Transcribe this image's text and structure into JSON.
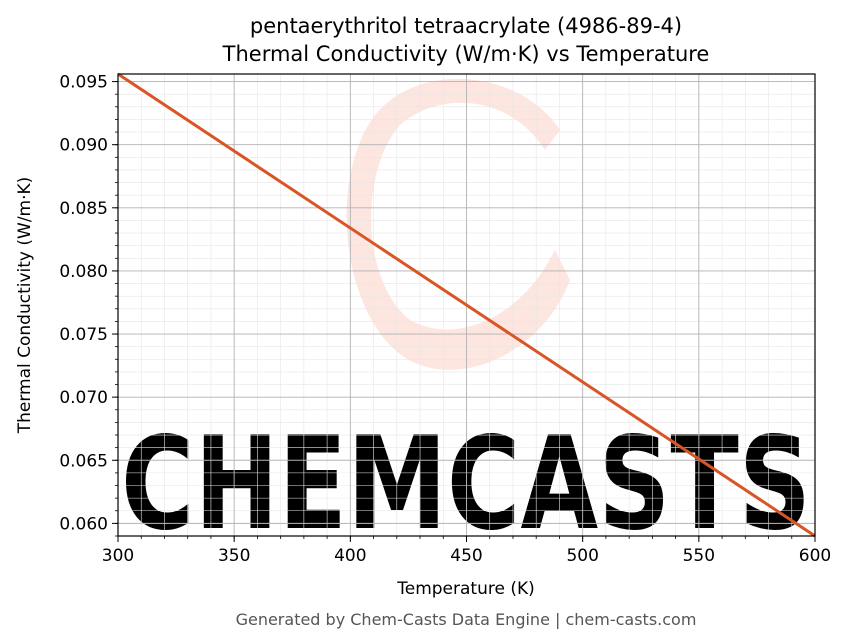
{
  "chart_data": {
    "type": "line",
    "title_line1": "pentaerythritol tetraacrylate (4986-89-4)",
    "title_line2": "Thermal Conductivity (W/m·K) vs Temperature",
    "xlabel": "Temperature (K)",
    "ylabel": "Thermal Conductivity (W/m·K)",
    "xlim": [
      300,
      600
    ],
    "ylim": [
      0.059,
      0.0956
    ],
    "xticks": [
      "300",
      "350",
      "400",
      "450",
      "500",
      "550",
      "600"
    ],
    "yticks": [
      "0.060",
      "0.065",
      "0.070",
      "0.075",
      "0.080",
      "0.085",
      "0.090",
      "0.095"
    ],
    "grid": true,
    "series": [
      {
        "x": [
          300,
          600
        ],
        "y": [
          0.0956,
          0.059
        ],
        "color": "#d95525"
      }
    ]
  },
  "watermark": {
    "text": "CHEMCASTS",
    "color": "#fde0da"
  },
  "footer": "Generated by Chem-Casts Data Engine | chem-casts.com"
}
